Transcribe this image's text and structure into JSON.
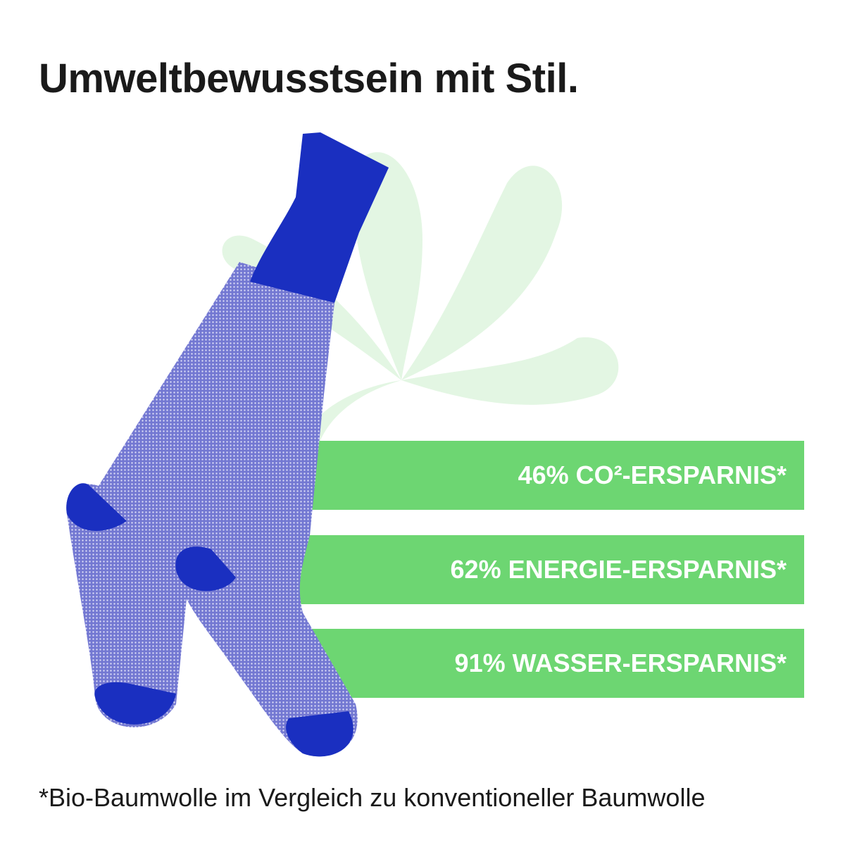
{
  "title": "Umweltbewusstsein mit Stil.",
  "stats": [
    {
      "label": "46% CO²-ERSPARNIS*"
    },
    {
      "label": "62% ENERGIE-ERSPARNIS*"
    },
    {
      "label": "91% WASSER-ERSPARNIS*"
    }
  ],
  "footnote": "*Bio-Baumwolle im Vergleich zu konventioneller Baumwolle",
  "colors": {
    "accent_green": "#6dd672",
    "pale_green": "#e3f6e3",
    "sock_blue": "#1a2fc0",
    "sock_pattern": "#8488d8"
  }
}
